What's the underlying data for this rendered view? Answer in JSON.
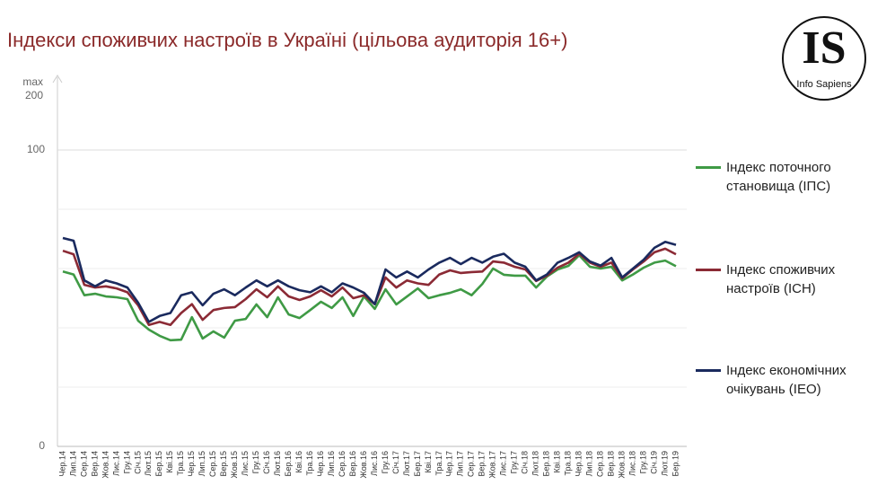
{
  "chart_data": {
    "type": "line",
    "title": "Індекси споживчих настроїв в Україні (цільова аудиторія 16+)",
    "annotation": "max 200",
    "logo": {
      "mark": "IS",
      "name": "Info Sapiens"
    },
    "categories": [
      "Чер.14",
      "Лип.14",
      "Сер.14",
      "Вер.14",
      "Жов.14",
      "Лис.14",
      "Гру.14",
      "Січ.15",
      "Лют.15",
      "Бер.15",
      "Кві.15",
      "Тра.15",
      "Чер.15",
      "Лип.15",
      "Сер.15",
      "Вер.15",
      "Жов.15",
      "Лис.15",
      "Гру.15",
      "Січ.16",
      "Лют.16",
      "Бер.16",
      "Кві.16",
      "Тра.16",
      "Чер.16",
      "Лип.16",
      "Сер.16",
      "Вер.16",
      "Жов.16",
      "Лис.16",
      "Гру.16",
      "Січ.17",
      "Лют.17",
      "Бер.17",
      "Кві.17",
      "Тра.17",
      "Чер.17",
      "Лип.17",
      "Сер.17",
      "Вер.17",
      "Жов.17",
      "Лис.17",
      "Гру.17",
      "Січ.18",
      "Лют.18",
      "Бер.18",
      "Кві.18",
      "Тра.18",
      "Чер.18",
      "Лип.18",
      "Сер.18",
      "Вер.18",
      "Жов.18",
      "Лис.18",
      "Гру.18",
      "Січ.19",
      "Лют.19",
      "Бер.19"
    ],
    "series": [
      {
        "name": "Індекс поточного становища (ІПС)",
        "color": "#3f9a45",
        "values": [
          59,
          58,
          51,
          51.5,
          50.6,
          50.3,
          49.7,
          42.4,
          39.4,
          37.3,
          35.8,
          36,
          43.6,
          36.4,
          38.8,
          36.7,
          42.4,
          43,
          47.9,
          43.6,
          50.3,
          44.5,
          43.3,
          46,
          48.8,
          46.7,
          50.3,
          44,
          50.6,
          46.4,
          53,
          47.9,
          50.6,
          53.3,
          50,
          51,
          51.8,
          53,
          51,
          54.8,
          60,
          57.9,
          57.6,
          57.6,
          53.6,
          57.3,
          59.7,
          60.9,
          64.5,
          60.6,
          60,
          60.6,
          56,
          58,
          60.3,
          62,
          62.7,
          60.8
        ]
      },
      {
        "name": "Індекс споживчих настроїв (ІСН)",
        "color": "#8b2a35",
        "values": [
          66,
          64.8,
          54.5,
          53.6,
          54,
          53.3,
          52,
          47.6,
          41,
          42,
          41,
          45,
          48,
          42.7,
          46,
          46.7,
          47,
          49.7,
          53,
          50.3,
          54,
          50.6,
          49.4,
          50.6,
          52.7,
          50.6,
          53.6,
          50,
          51,
          48,
          57,
          53.6,
          56,
          55,
          54.5,
          58,
          59.4,
          58.5,
          58.8,
          59,
          62.4,
          62,
          60.6,
          59.7,
          55.8,
          57.6,
          60.3,
          62,
          65,
          62,
          60.6,
          62,
          56.7,
          59.7,
          62.4,
          65.5,
          66.7,
          64.8
        ]
      },
      {
        "name": "Індекс економічних очікувань (ІЕО)",
        "color": "#1a2a5e",
        "values": [
          70.3,
          69.4,
          56,
          54,
          56,
          55,
          53.6,
          48.5,
          42,
          44,
          45,
          51,
          52,
          47.6,
          51.5,
          53,
          51,
          53.6,
          56,
          54,
          56,
          54,
          52.7,
          52,
          54,
          52,
          55,
          53.6,
          51.8,
          48,
          59.7,
          57,
          59,
          57,
          59.7,
          62,
          63.6,
          61.5,
          63.6,
          62,
          64,
          65,
          62,
          60.6,
          56,
          58,
          62,
          63.6,
          65.5,
          62.4,
          61,
          63.6,
          57,
          60,
          63,
          67,
          69,
          68
        ]
      }
    ],
    "ylim": [
      0,
      125
    ],
    "yticks": [
      0,
      100
    ],
    "minor_grid": [
      20,
      40,
      60,
      80
    ]
  }
}
